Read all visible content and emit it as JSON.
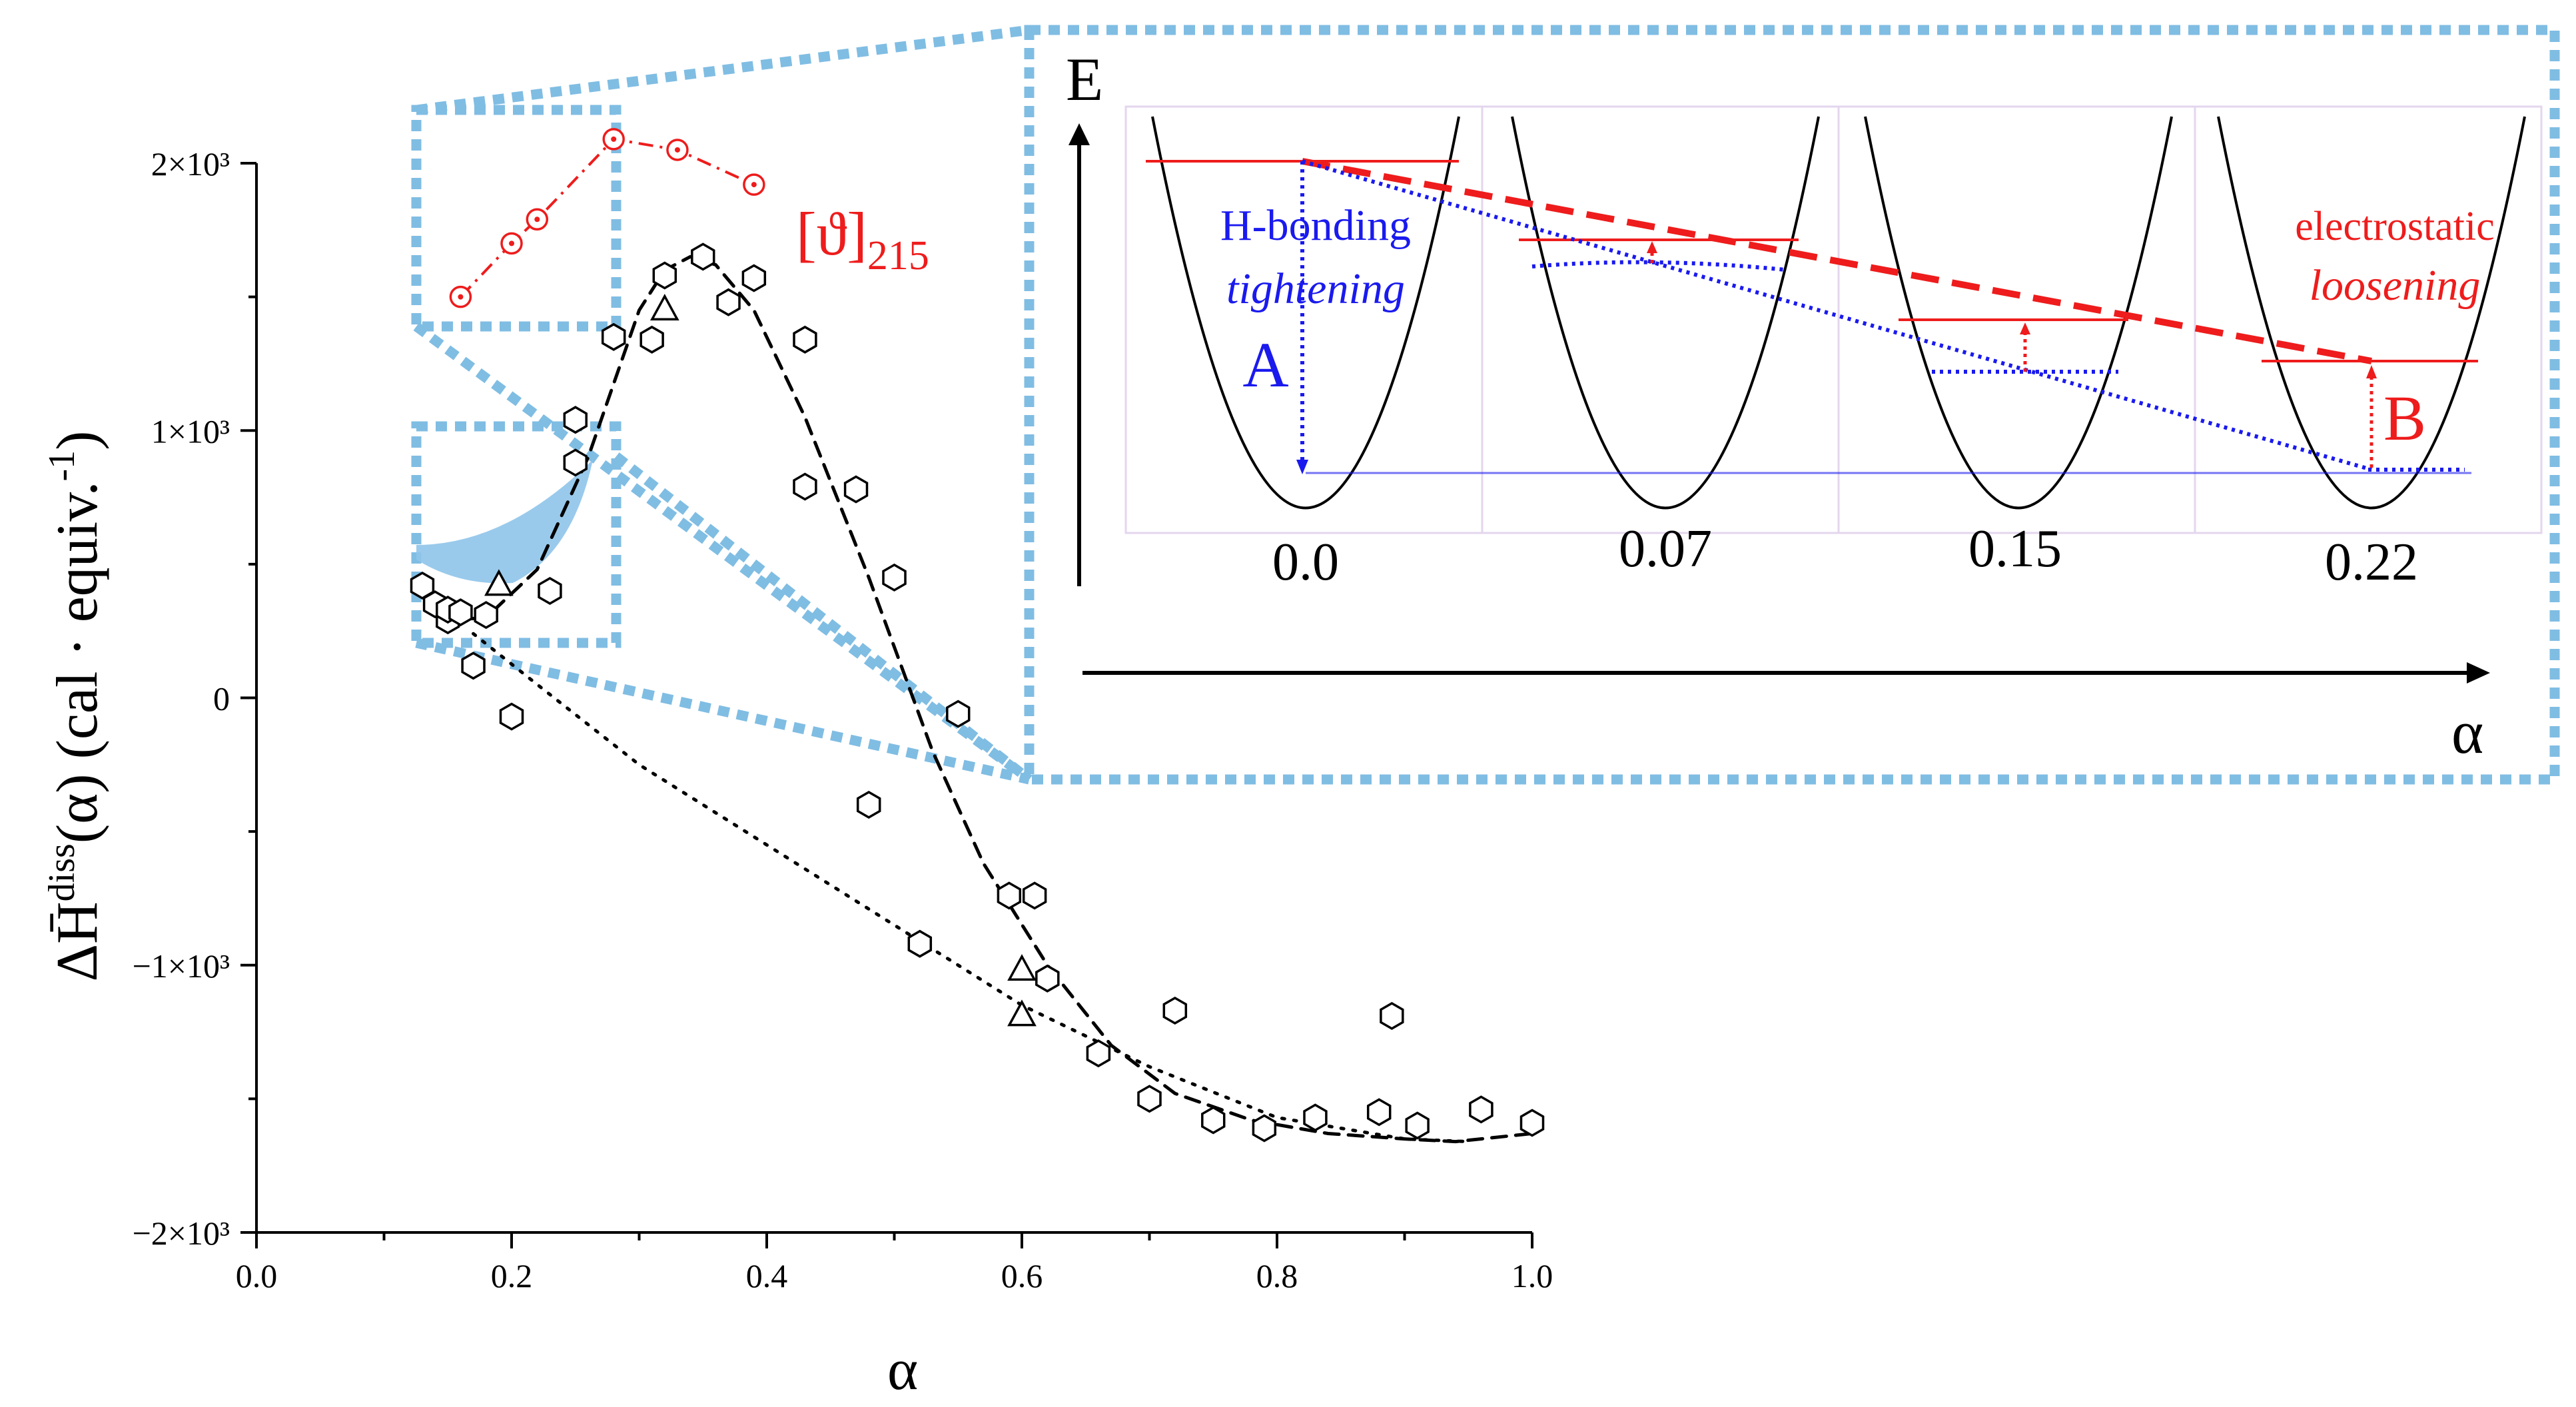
{
  "chart_data": [
    {
      "type": "scatter",
      "title": "",
      "xlabel": "α",
      "ylabel": "ΔH̄",
      "ylabel_sup": "diss",
      "ylabel_rest": "(α) (cal · equiv.",
      "ylabel_exp": "-1",
      "ylabel_close": ")",
      "xlim": [
        0.0,
        1.0
      ],
      "ylim": [
        -2000,
        2000
      ],
      "x_ticks": [
        {
          "value": 0.0,
          "label": "0.0"
        },
        {
          "value": 0.2,
          "label": "0.2"
        },
        {
          "value": 0.4,
          "label": "0.4"
        },
        {
          "value": 0.6,
          "label": "0.6"
        },
        {
          "value": 0.8,
          "label": "0.8"
        },
        {
          "value": 1.0,
          "label": "1.0"
        }
      ],
      "y_ticks": [
        {
          "value": 2000,
          "label": "2×10³"
        },
        {
          "value": 1000,
          "label": "1×10³"
        },
        {
          "value": 0,
          "label": "0"
        },
        {
          "value": -1000,
          "label": "−1×10³"
        },
        {
          "value": -2000,
          "label": "−2×10³"
        }
      ],
      "series": [
        {
          "name": "hexagons",
          "marker": "hexagon",
          "points": [
            [
              0.13,
              420
            ],
            [
              0.14,
              350
            ],
            [
              0.15,
              290
            ],
            [
              0.15,
              330
            ],
            [
              0.16,
              320
            ],
            [
              0.17,
              120
            ],
            [
              0.18,
              310
            ],
            [
              0.2,
              -70
            ],
            [
              0.23,
              400
            ],
            [
              0.25,
              1040
            ],
            [
              0.25,
              880
            ],
            [
              0.28,
              1350
            ],
            [
              0.31,
              1340
            ],
            [
              0.32,
              1580
            ],
            [
              0.35,
              1650
            ],
            [
              0.37,
              1480
            ],
            [
              0.39,
              1570
            ],
            [
              0.43,
              1340
            ],
            [
              0.43,
              790
            ],
            [
              0.47,
              780
            ],
            [
              0.48,
              -400
            ],
            [
              0.5,
              450
            ],
            [
              0.52,
              -920
            ],
            [
              0.55,
              -60
            ],
            [
              0.59,
              -740
            ],
            [
              0.61,
              -740
            ],
            [
              0.62,
              -1050
            ],
            [
              0.66,
              -1330
            ],
            [
              0.7,
              -1500
            ],
            [
              0.72,
              -1170
            ],
            [
              0.75,
              -1580
            ],
            [
              0.79,
              -1610
            ],
            [
              0.83,
              -1570
            ],
            [
              0.88,
              -1550
            ],
            [
              0.89,
              -1190
            ],
            [
              0.91,
              -1600
            ],
            [
              0.96,
              -1540
            ],
            [
              1.0,
              -1590
            ]
          ]
        },
        {
          "name": "triangles",
          "marker": "triangle",
          "points": [
            [
              0.19,
              420
            ],
            [
              0.32,
              1450
            ],
            [
              0.6,
              -1020
            ],
            [
              0.6,
              -1190
            ]
          ]
        },
        {
          "name": "[ϑ]215",
          "marker": "circle-dot",
          "color": "#ee1c1c",
          "points": [
            [
              0.16,
              1500
            ],
            [
              0.2,
              1700
            ],
            [
              0.22,
              1790
            ],
            [
              0.28,
              2090
            ],
            [
              0.33,
              2050
            ],
            [
              0.39,
              1920
            ]
          ]
        },
        {
          "name": "dashed fit",
          "style": "dashed",
          "points": [
            [
              0.15,
              290
            ],
            [
              0.18,
              300
            ],
            [
              0.22,
              480
            ],
            [
              0.26,
              900
            ],
            [
              0.3,
              1450
            ],
            [
              0.32,
              1600
            ],
            [
              0.34,
              1650
            ],
            [
              0.36,
              1620
            ],
            [
              0.39,
              1450
            ],
            [
              0.43,
              1050
            ],
            [
              0.48,
              450
            ],
            [
              0.53,
              -200
            ],
            [
              0.57,
              -620
            ],
            [
              0.62,
              -1000
            ],
            [
              0.67,
              -1300
            ],
            [
              0.72,
              -1480
            ],
            [
              0.78,
              -1580
            ],
            [
              0.84,
              -1630
            ],
            [
              0.9,
              -1650
            ],
            [
              0.94,
              -1660
            ],
            [
              1.0,
              -1630
            ]
          ]
        },
        {
          "name": "dotted baseline",
          "style": "dotted",
          "points": [
            [
              0.17,
              240
            ],
            [
              0.22,
              50
            ],
            [
              0.3,
              -250
            ],
            [
              0.4,
              -550
            ],
            [
              0.5,
              -850
            ],
            [
              0.6,
              -1150
            ],
            [
              0.7,
              -1380
            ],
            [
              0.8,
              -1570
            ],
            [
              0.9,
              -1650
            ],
            [
              0.95,
              -1660
            ]
          ]
        }
      ],
      "ref_label": "[ϑ]",
      "ref_label_sub": "215"
    },
    {
      "type": "line",
      "title": "",
      "xlabel": "α",
      "ylabel": "E",
      "wells": [
        "0.0",
        "0.07",
        "0.15",
        "0.22"
      ],
      "left_label_line1": "H-bonding",
      "left_label_line2": "tightening",
      "right_label_line1": "electrostatic",
      "right_label_line2": "loosening",
      "arrow_a": "A",
      "arrow_b": "B"
    }
  ],
  "colors": {
    "accent_red": "#ee1c1c",
    "accent_blue": "#1a1aee",
    "zoom_box": "#80bde3",
    "fill_blue": "#8ec4ea",
    "ink": "#000000"
  }
}
